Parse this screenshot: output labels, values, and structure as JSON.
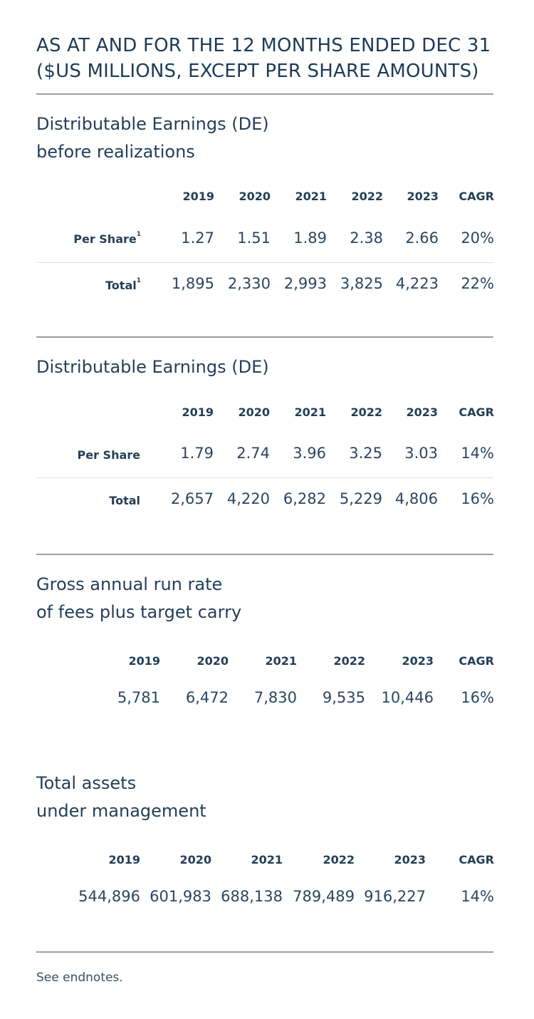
{
  "header": {
    "title_line1": "AS AT AND FOR THE 12 MONTHS ENDED DEC 31",
    "title_line2": "($US MILLIONS, EXCEPT PER SHARE AMOUNTS)"
  },
  "sections": [
    {
      "title_line1": "Distributable Earnings (DE)",
      "title_line2": "before realizations",
      "columns": [
        "2019",
        "2020",
        "2021",
        "2022",
        "2023",
        "CAGR"
      ],
      "rows": [
        {
          "label": "Per Share",
          "footnote": "1",
          "values": [
            "1.27",
            "1.51",
            "1.89",
            "2.38",
            "2.66",
            "20%"
          ]
        },
        {
          "label": "Total",
          "footnote": "1",
          "values": [
            "1,895",
            "2,330",
            "2,993",
            "3,825",
            "4,223",
            "22%"
          ]
        }
      ]
    },
    {
      "title_line1": "Distributable Earnings (DE)",
      "columns": [
        "2019",
        "2020",
        "2021",
        "2022",
        "2023",
        "CAGR"
      ],
      "rows": [
        {
          "label": "Per Share",
          "values": [
            "1.79",
            "2.74",
            "3.96",
            "3.25",
            "3.03",
            "14%"
          ]
        },
        {
          "label": "Total",
          "values": [
            "2,657",
            "4,220",
            "6,282",
            "5,229",
            "4,806",
            "16%"
          ]
        }
      ]
    },
    {
      "title_line1": "Gross annual run rate",
      "title_line2": "of fees plus target carry",
      "columns": [
        "2019",
        "2020",
        "2021",
        "2022",
        "2023",
        "CAGR"
      ],
      "rows": [
        {
          "values": [
            "5,781",
            "6,472",
            "7,830",
            "9,535",
            "10,446",
            "16%"
          ]
        }
      ]
    },
    {
      "title_line1": "Total assets",
      "title_line2": "under management",
      "columns": [
        "2019",
        "2020",
        "2021",
        "2022",
        "2023",
        "CAGR"
      ],
      "rows": [
        {
          "values": [
            "544,896",
            "601,983",
            "688,138",
            "789,489",
            "916,227",
            "14%"
          ]
        }
      ]
    }
  ],
  "footer": {
    "note": "See endnotes."
  }
}
